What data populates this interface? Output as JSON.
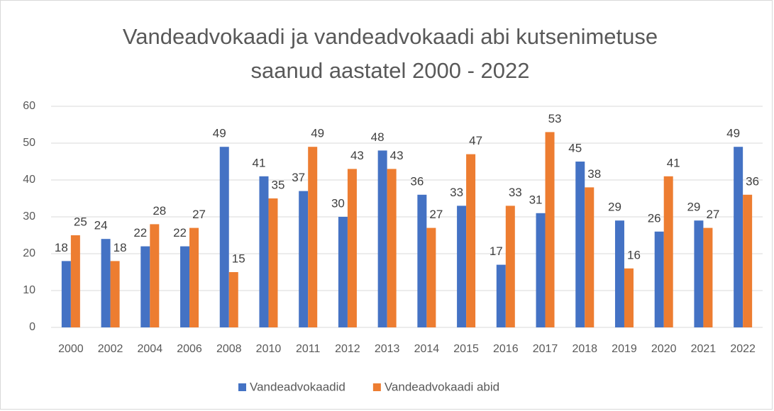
{
  "chart_data": {
    "type": "bar",
    "title": "Vandeadvokaadi ja vandeadvokaadi abi kutsenimetuse saanud aastatel 2000 - 2022",
    "categories": [
      "2000",
      "2002",
      "2004",
      "2006",
      "2008",
      "2010",
      "2011",
      "2012",
      "2013",
      "2014",
      "2015",
      "2016",
      "2017",
      "2018",
      "2019",
      "2020",
      "2021",
      "2022"
    ],
    "series": [
      {
        "name": "Vandeadvokaadid",
        "color": "#4472c4",
        "values": [
          18,
          24,
          22,
          22,
          49,
          41,
          37,
          30,
          48,
          36,
          33,
          17,
          31,
          45,
          29,
          26,
          29,
          49
        ]
      },
      {
        "name": "Vandeadvokaadi abid",
        "color": "#ed7d31",
        "values": [
          25,
          18,
          28,
          27,
          15,
          35,
          49,
          43,
          43,
          27,
          47,
          33,
          53,
          38,
          16,
          41,
          27,
          36
        ]
      }
    ],
    "ylim": [
      0,
      60
    ],
    "yticks": [
      0,
      10,
      20,
      30,
      40,
      50,
      60
    ],
    "grid": true,
    "legend": "bottom"
  }
}
